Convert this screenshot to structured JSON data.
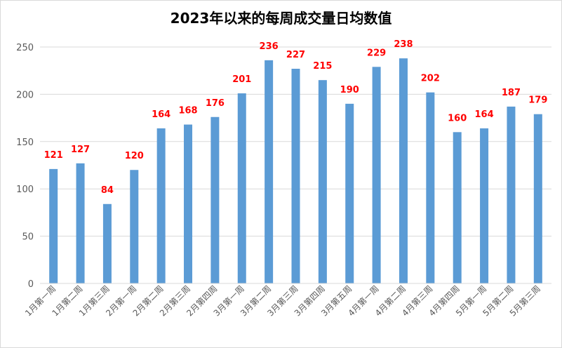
{
  "chart_data": {
    "type": "bar",
    "title": "2023年以来的每周成交量日均数值",
    "categories": [
      "1月第一周",
      "1月第二周",
      "1月第三周",
      "2月第一周",
      "2月第二周",
      "2月第三周",
      "2月第四周",
      "3月第一周",
      "3月第二周",
      "3月第三周",
      "3月第四周",
      "3月第五周",
      "4月第一周",
      "4月第二周",
      "4月第三周",
      "4月第四周",
      "5月第一周",
      "5月第二周",
      "5月第三周"
    ],
    "values": [
      121,
      127,
      84,
      120,
      164,
      168,
      176,
      201,
      236,
      227,
      215,
      190,
      229,
      238,
      202,
      160,
      164,
      187,
      179
    ],
    "ylim": [
      0,
      250
    ],
    "yticks": [
      0,
      50,
      100,
      150,
      200,
      250
    ],
    "grid": true,
    "legend": "none",
    "colors": {
      "bar": "#5b9bd5",
      "label": "#ff0000",
      "grid": "#d9d9d9",
      "axis_text": "#595959"
    }
  }
}
